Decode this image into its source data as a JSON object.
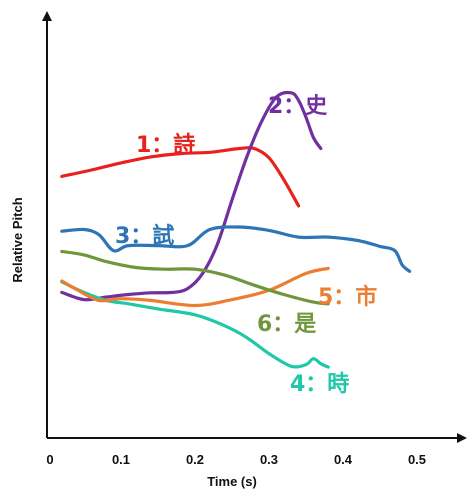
{
  "chart_data": {
    "type": "line",
    "title": "",
    "xlabel": "Time (s)",
    "ylabel": "Relative Pitch",
    "xlim": [
      0,
      0.55
    ],
    "ylim": [
      0,
      1
    ],
    "x_ticks": [
      "0",
      "0.1",
      "0.2",
      "0.3",
      "0.4",
      "0.5"
    ],
    "grid": false,
    "series": [
      {
        "name": "1：詩",
        "color": "#e8211f",
        "x": [
          0.02,
          0.06,
          0.1,
          0.14,
          0.18,
          0.22,
          0.26,
          0.28,
          0.3,
          0.32,
          0.34
        ],
        "y": [
          0.62,
          0.635,
          0.652,
          0.666,
          0.674,
          0.677,
          0.686,
          0.686,
          0.664,
          0.612,
          0.55
        ]
      },
      {
        "name": "2：史",
        "color": "#7030a0",
        "x": [
          0.02,
          0.05,
          0.08,
          0.11,
          0.14,
          0.17,
          0.19,
          0.21,
          0.23,
          0.25,
          0.27,
          0.29,
          0.31,
          0.33,
          0.34,
          0.35,
          0.36,
          0.37
        ],
        "y": [
          0.345,
          0.328,
          0.334,
          0.34,
          0.344,
          0.345,
          0.354,
          0.389,
          0.458,
          0.564,
          0.666,
          0.75,
          0.808,
          0.818,
          0.8,
          0.76,
          0.712,
          0.686
        ]
      },
      {
        "name": "3：試",
        "color": "#2e75b6",
        "x": [
          0.02,
          0.05,
          0.07,
          0.09,
          0.11,
          0.15,
          0.19,
          0.22,
          0.26,
          0.3,
          0.34,
          0.38,
          0.42,
          0.45,
          0.47,
          0.48,
          0.49
        ],
        "y": [
          0.49,
          0.494,
          0.482,
          0.444,
          0.456,
          0.456,
          0.456,
          0.494,
          0.5,
          0.492,
          0.476,
          0.476,
          0.468,
          0.454,
          0.444,
          0.41,
          0.395
        ]
      },
      {
        "name": "4：時",
        "color": "#1fc8a6",
        "x": [
          0.02,
          0.05,
          0.08,
          0.11,
          0.15,
          0.2,
          0.24,
          0.27,
          0.3,
          0.33,
          0.35,
          0.36,
          0.37,
          0.38
        ],
        "y": [
          0.37,
          0.345,
          0.326,
          0.318,
          0.306,
          0.292,
          0.266,
          0.238,
          0.2,
          0.17,
          0.174,
          0.188,
          0.176,
          0.168
        ]
      },
      {
        "name": "5：市",
        "color": "#ed7d31",
        "x": [
          0.02,
          0.04,
          0.07,
          0.1,
          0.14,
          0.2,
          0.25,
          0.3,
          0.35,
          0.38
        ],
        "y": [
          0.372,
          0.352,
          0.326,
          0.33,
          0.326,
          0.314,
          0.328,
          0.35,
          0.39,
          0.402
        ]
      },
      {
        "name": "6：是",
        "color": "#70963c",
        "x": [
          0.02,
          0.05,
          0.08,
          0.12,
          0.16,
          0.2,
          0.24,
          0.28,
          0.32,
          0.36,
          0.38
        ],
        "y": [
          0.442,
          0.434,
          0.418,
          0.404,
          0.4,
          0.4,
          0.386,
          0.362,
          0.34,
          0.322,
          0.318
        ]
      }
    ]
  }
}
